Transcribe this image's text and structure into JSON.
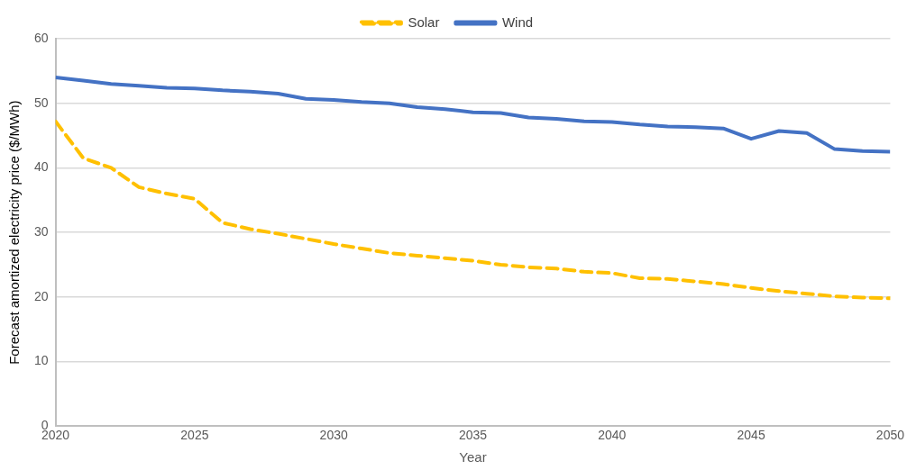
{
  "chart_data": {
    "type": "line",
    "xlabel": "Year",
    "ylabel": "Forecast amortized electricity price ($/MWh)",
    "x": [
      2020,
      2021,
      2022,
      2023,
      2024,
      2025,
      2026,
      2027,
      2028,
      2029,
      2030,
      2031,
      2032,
      2033,
      2034,
      2035,
      2036,
      2037,
      2038,
      2039,
      2040,
      2041,
      2042,
      2043,
      2044,
      2045,
      2046,
      2047,
      2048,
      2049,
      2050
    ],
    "series": [
      {
        "name": "Solar",
        "color": "#ffc000",
        "line_style": "dashed",
        "values": [
          47.2,
          41.5,
          40.0,
          37.0,
          36.0,
          35.2,
          31.5,
          30.5,
          29.8,
          29.0,
          28.2,
          27.5,
          26.8,
          26.4,
          26.0,
          25.6,
          25.0,
          24.6,
          24.4,
          23.9,
          23.7,
          22.9,
          22.8,
          22.4,
          22.0,
          21.4,
          20.9,
          20.5,
          20.1,
          19.9,
          19.8
        ]
      },
      {
        "name": "Wind",
        "color": "#4472c4",
        "line_style": "solid",
        "values": [
          54.0,
          53.5,
          53.0,
          52.7,
          52.4,
          52.3,
          52.0,
          51.8,
          51.5,
          50.7,
          50.5,
          50.2,
          50.0,
          49.4,
          49.1,
          48.6,
          48.5,
          47.8,
          47.6,
          47.2,
          47.1,
          46.7,
          46.4,
          46.3,
          46.1,
          44.5,
          45.7,
          45.4,
          42.9,
          42.6,
          42.5
        ]
      }
    ],
    "xlim": [
      2020,
      2050
    ],
    "xticks": [
      2020,
      2025,
      2030,
      2035,
      2040,
      2045,
      2050
    ],
    "ylim": [
      0,
      60
    ],
    "yticks": [
      0,
      10,
      20,
      30,
      40,
      50,
      60
    ],
    "grid": "y",
    "legend": "top",
    "marker": "none"
  }
}
